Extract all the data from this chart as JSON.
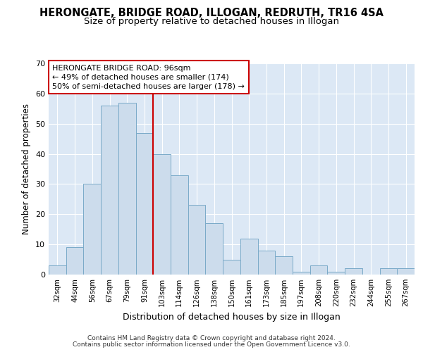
{
  "title": "HERONGATE, BRIDGE ROAD, ILLOGAN, REDRUTH, TR16 4SA",
  "subtitle": "Size of property relative to detached houses in Illogan",
  "xlabel": "Distribution of detached houses by size in Illogan",
  "ylabel": "Number of detached properties",
  "bar_labels": [
    "32sqm",
    "44sqm",
    "56sqm",
    "67sqm",
    "79sqm",
    "91sqm",
    "103sqm",
    "114sqm",
    "126sqm",
    "138sqm",
    "150sqm",
    "161sqm",
    "173sqm",
    "185sqm",
    "197sqm",
    "208sqm",
    "220sqm",
    "232sqm",
    "244sqm",
    "255sqm",
    "267sqm"
  ],
  "bar_values": [
    3,
    9,
    30,
    56,
    57,
    47,
    40,
    33,
    23,
    17,
    5,
    12,
    8,
    6,
    1,
    3,
    1,
    2,
    0,
    2,
    2
  ],
  "bar_color": "#ccdcec",
  "bar_edge_color": "#7aaac8",
  "red_line_index": 6,
  "red_line_color": "#cc0000",
  "annotation_text": "HERONGATE BRIDGE ROAD: 96sqm\n← 49% of detached houses are smaller (174)\n50% of semi-detached houses are larger (178) →",
  "annotation_box_color": "white",
  "annotation_box_edge": "#cc0000",
  "ylim": [
    0,
    70
  ],
  "yticks": [
    0,
    10,
    20,
    30,
    40,
    50,
    60,
    70
  ],
  "background_color": "white",
  "plot_bg_color": "#dce8f5",
  "footer_line1": "Contains HM Land Registry data © Crown copyright and database right 2024.",
  "footer_line2": "Contains public sector information licensed under the Open Government Licence v3.0.",
  "title_fontsize": 10.5,
  "subtitle_fontsize": 9.5,
  "xlabel_fontsize": 9,
  "ylabel_fontsize": 8.5
}
